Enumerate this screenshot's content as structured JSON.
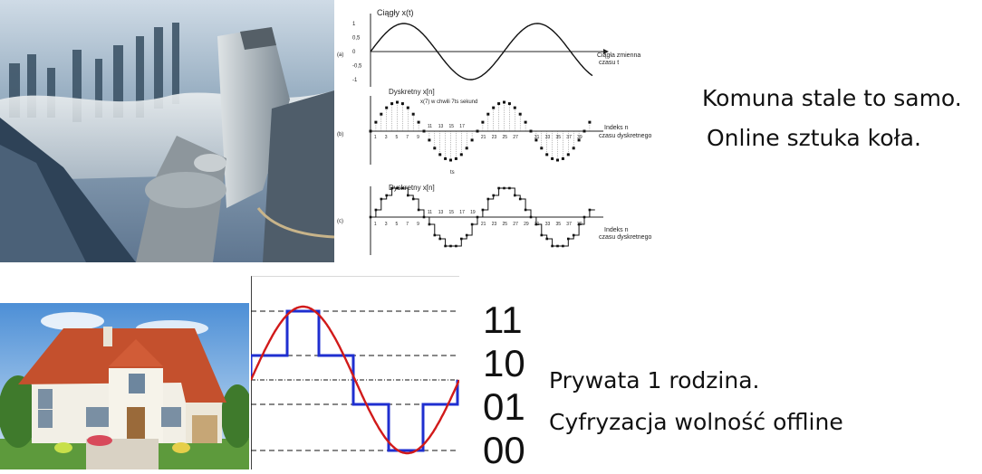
{
  "top_right_caption": {
    "line1": "Komuna stale to samo.",
    "line2": "Online sztuka koła."
  },
  "bottom_right_caption": {
    "line1": "Prywata 1 rodzina.",
    "line2": "Cyfryzacja wolność offline"
  },
  "quantization_levels": [
    "11",
    "10",
    "01",
    "00"
  ],
  "signal_figure": {
    "panel_a": {
      "title": "Ciągły x(t)",
      "axis_label_line1": "Ciągła zmienna",
      "axis_label_line2": "czasu t",
      "y_ticks": [
        "1",
        "0,5",
        "0",
        "-0,5",
        "-1"
      ],
      "tag": "(a)"
    },
    "panel_b": {
      "title": "Dyskretny x[n]",
      "note": "x(7) w chwili 7ts sekund",
      "axis_label_line1": "Indeks n",
      "axis_label_line2": "czasu dyskretnego",
      "x_ticks": [
        "1",
        "3",
        "5",
        "7",
        "9",
        "11",
        "13",
        "15",
        "17",
        "21",
        "23",
        "25",
        "27",
        "31",
        "33",
        "35",
        "37",
        "39"
      ],
      "tag": "(b)",
      "ts_label": "ts"
    },
    "panel_c": {
      "title": "Dyskretny x[n]",
      "axis_label_line1": "Indeks n",
      "axis_label_line2": "czasu dyskretnego",
      "x_ticks": [
        "1",
        "3",
        "5",
        "7",
        "9",
        "11",
        "13",
        "15",
        "17",
        "19",
        "21",
        "23",
        "25",
        "27",
        "29",
        "31",
        "33",
        "35",
        "37",
        "39"
      ],
      "tag": "(c)"
    }
  },
  "colors": {
    "sine_red": "#d11a1a",
    "quantized_blue": "#1f2fd0",
    "sky": "#9cc3e6",
    "roof": "#c4502d"
  },
  "images": [
    "city-skyline-photo",
    "house-photo"
  ]
}
